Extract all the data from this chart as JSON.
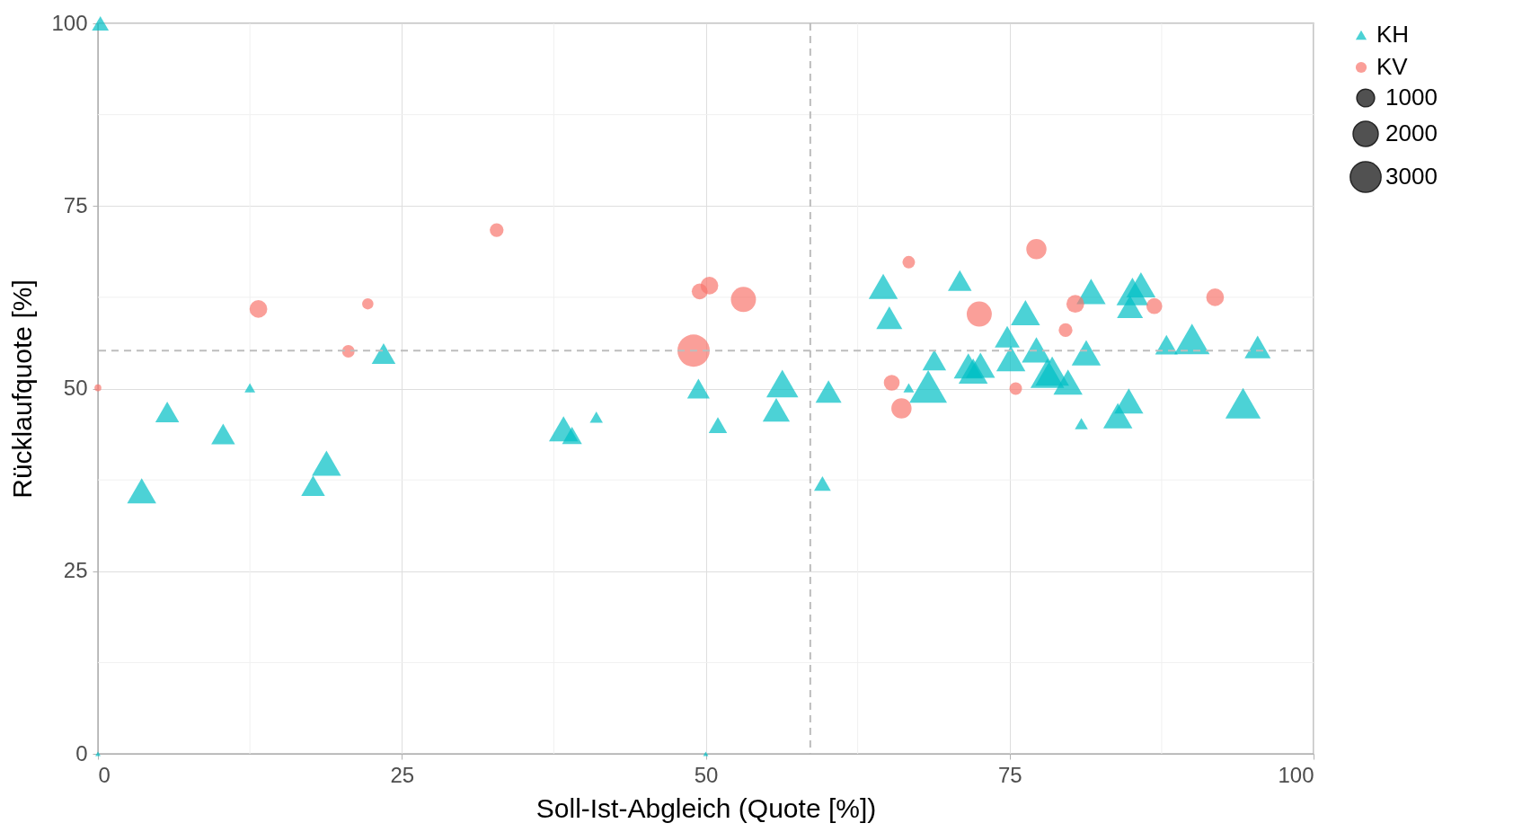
{
  "chart_data": {
    "type": "bubble",
    "xlabel": "Soll-Ist-Abgleich (Quote [%])",
    "ylabel": "Rücklaufquote [%]",
    "xlim": [
      0,
      100
    ],
    "ylim": [
      0,
      100
    ],
    "xticks": [
      0,
      25,
      50,
      75,
      100
    ],
    "yticks": [
      0,
      25,
      50,
      75,
      100
    ],
    "grid": true,
    "legend": "right",
    "size_legend": [
      1000,
      2000,
      3000
    ],
    "ref_lines": [
      {
        "axis": "x",
        "value": 58.6,
        "line_style": "dashed",
        "color": "#bdbdbd"
      },
      {
        "axis": "y",
        "value": 55.2,
        "line_style": "dashed",
        "color": "#bdbdbd"
      }
    ],
    "series": [
      {
        "name": "KH",
        "color": "#00bfc4",
        "marker": "triangle",
        "x": [
          0.2,
          3.6,
          5.7,
          10.3,
          12.5,
          17.7,
          18.8,
          23.5,
          38.3,
          39.0,
          41.0,
          49.4,
          50.0,
          51.0,
          56.3,
          55.8,
          59.6,
          60.1,
          64.6,
          65.1,
          66.7,
          68.3,
          68.8,
          70.9,
          71.6,
          72.0,
          72.6,
          74.8,
          75.1,
          76.3,
          77.2,
          78.1,
          78.5,
          79.8,
          81.3,
          80.9,
          81.7,
          83.9,
          84.8,
          84.9,
          85.1,
          85.8,
          87.9,
          90.0,
          94.2,
          95.4,
          0
        ],
        "values": [
          100,
          36.0,
          46.8,
          43.8,
          50.1,
          36.7,
          39.8,
          54.8,
          44.5,
          43.6,
          46.1,
          50.0,
          0,
          45.0,
          50.7,
          47.1,
          37.0,
          49.6,
          64.0,
          59.7,
          50.1,
          50.3,
          53.9,
          64.8,
          53.1,
          52.4,
          53.2,
          57.1,
          54.1,
          60.4,
          55.3,
          52.1,
          52.4,
          50.9,
          54.9,
          45.2,
          63.3,
          46.3,
          48.3,
          61.2,
          63.3,
          64.2,
          56.0,
          56.8,
          48.0,
          55.7,
          0
        ],
        "sizes": [
          500,
          1500,
          1000,
          1000,
          200,
          1000,
          1500,
          1000,
          1500,
          700,
          300,
          900,
          50,
          600,
          1800,
          1300,
          500,
          1200,
          1500,
          1200,
          200,
          2500,
          1000,
          1000,
          1500,
          1500,
          1500,
          1100,
          1500,
          1500,
          1500,
          2000,
          2000,
          1500,
          1500,
          300,
          1500,
          1500,
          1500,
          1200,
          1800,
          1500,
          900,
          2200,
          2200,
          1200,
          50
        ]
      },
      {
        "name": "KV",
        "color": "#f8766d",
        "marker": "circle",
        "x": [
          0,
          13.2,
          20.6,
          22.2,
          32.8,
          49.0,
          49.5,
          50.3,
          53.1,
          65.3,
          66.1,
          66.7,
          72.5,
          75.5,
          77.2,
          79.6,
          80.4,
          86.9,
          91.9
        ],
        "values": [
          50.1,
          60.9,
          55.1,
          61.6,
          71.7,
          55.2,
          63.3,
          64.1,
          62.2,
          50.8,
          47.3,
          67.3,
          60.2,
          50.0,
          69.1,
          58.0,
          61.6,
          61.3,
          62.5
        ],
        "sizes": [
          150,
          1000,
          500,
          400,
          600,
          3300,
          800,
          1000,
          2000,
          800,
          1300,
          500,
          2000,
          500,
          1300,
          600,
          1000,
          800,
          1000
        ]
      }
    ]
  }
}
